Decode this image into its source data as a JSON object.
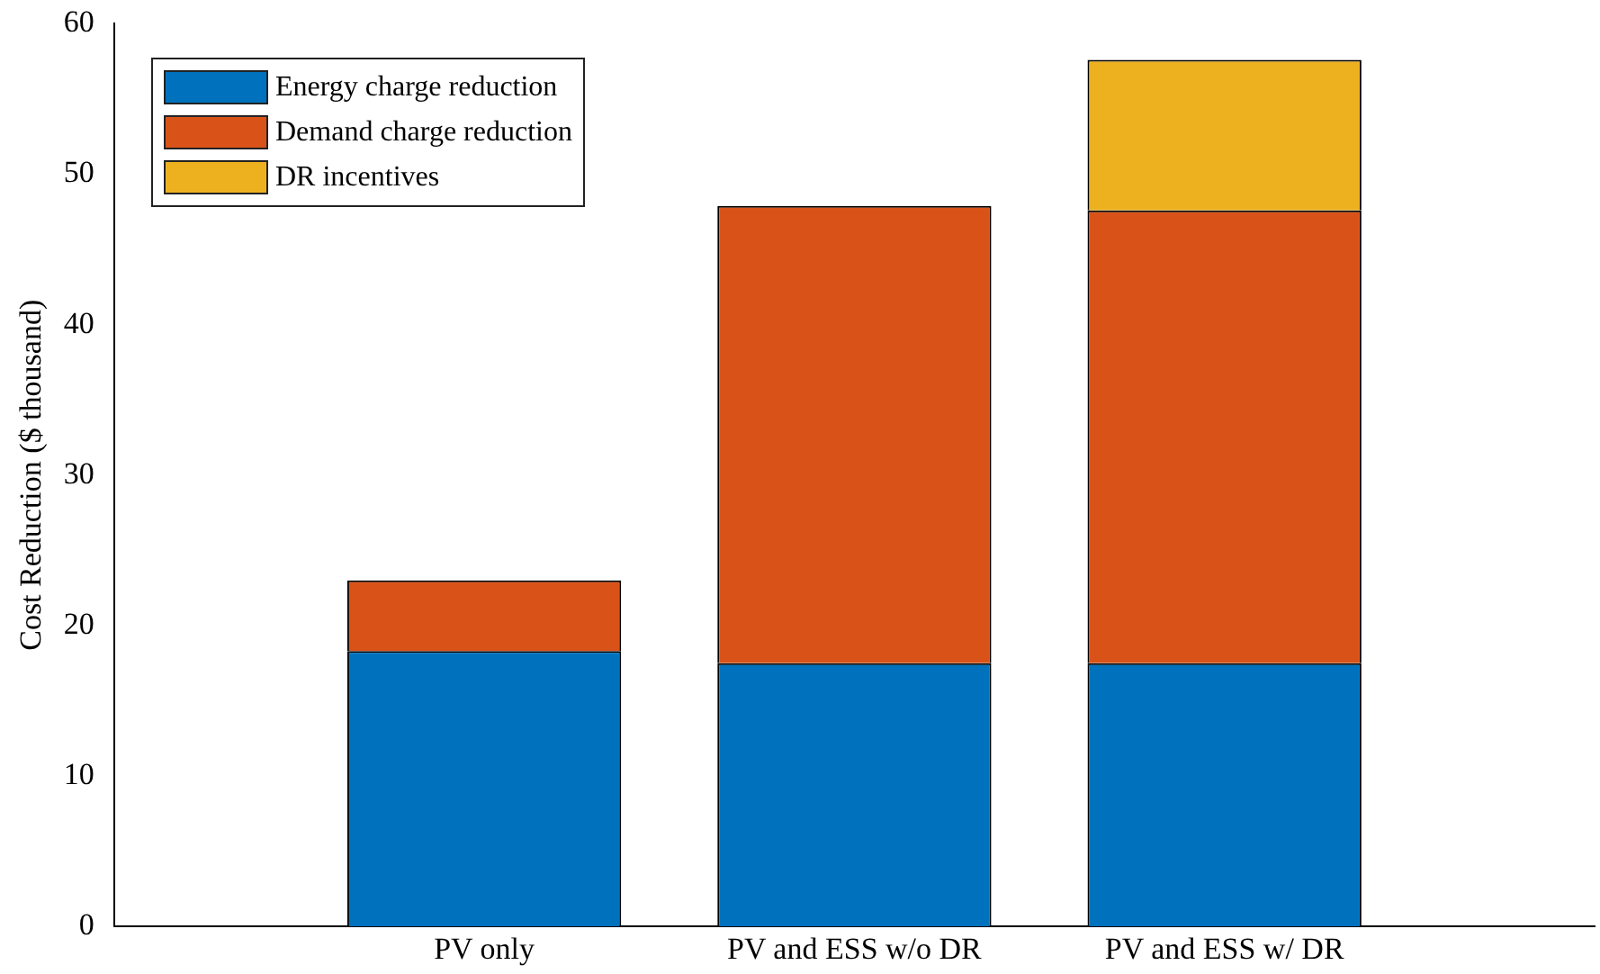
{
  "chart_data": {
    "type": "bar",
    "stacked": true,
    "ylabel": "Cost Reduction ($ thousand)",
    "categories": [
      null,
      "PV only",
      "PV and ESS w/o DR",
      "PV and ESS w/ DR",
      null
    ],
    "series": [
      {
        "name": "Energy charge reduction",
        "color": "#0072bd",
        "values": [
          null,
          18.3,
          17.5,
          17.5,
          null
        ]
      },
      {
        "name": "Demand charge reduction",
        "color": "#d95319",
        "values": [
          null,
          4.7,
          30.4,
          30.1,
          null
        ]
      },
      {
        "name": "DR incentives",
        "color": "#edb120",
        "values": [
          null,
          null,
          null,
          10.0,
          null
        ]
      }
    ],
    "ylim": [
      0,
      60
    ],
    "yticks": [
      0,
      10,
      20,
      30,
      40,
      50,
      60
    ],
    "legend": "top left"
  }
}
